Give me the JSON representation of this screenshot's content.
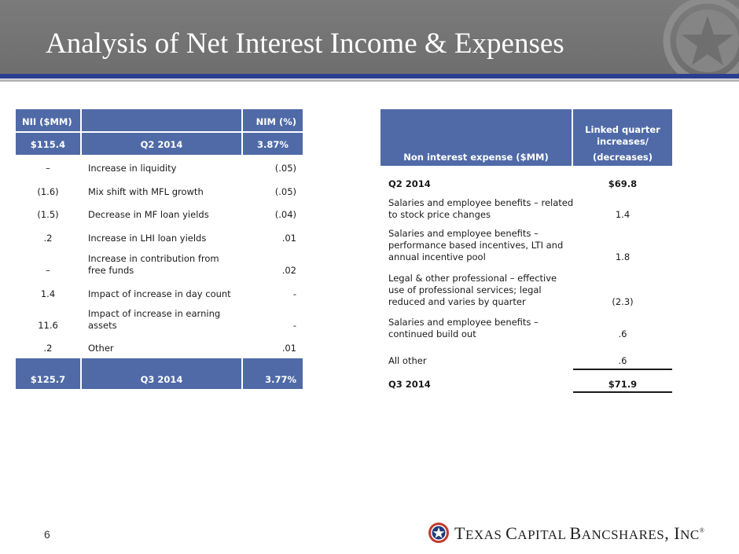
{
  "slide": {
    "title": "Analysis of Net Interest Income & Expenses",
    "page_number": "6"
  },
  "left_table": {
    "header_row1": [
      "NII ($MM)",
      "",
      "NIM (%)"
    ],
    "header_row2": [
      "$115.4",
      "Q2 2014",
      "3.87%"
    ],
    "rows": [
      {
        "nii": "–",
        "desc": [
          "Increase in liquidity"
        ],
        "nim": "(.05)"
      },
      {
        "nii": "(1.6)",
        "desc": [
          "Mix shift with MFL growth"
        ],
        "nim": "(.05)"
      },
      {
        "nii": "(1.5)",
        "desc": [
          "Decrease in MF loan yields"
        ],
        "nim": "(.04)"
      },
      {
        "nii": ".2",
        "desc": [
          "Increase in LHI loan yields"
        ],
        "nim": ".01"
      },
      {
        "nii": "–",
        "desc": [
          "Increase in contribution from",
          "free funds"
        ],
        "nim": ".02"
      },
      {
        "nii": "1.4",
        "desc": [
          "Impact of increase in day count"
        ],
        "nim": "-"
      },
      {
        "nii": "11.6",
        "desc": [
          "Impact of increase in earning",
          "assets"
        ],
        "nim": "-"
      },
      {
        "nii": ".2",
        "desc": [
          "Other"
        ],
        "nim": ".01"
      }
    ],
    "footer_row": [
      "$125.7",
      "Q3 2014",
      "3.77%"
    ]
  },
  "right_table": {
    "header_left": "Non interest expense ($MM)",
    "header_right": [
      "Linked quarter",
      "increases/",
      "(decreases)"
    ],
    "start_row": {
      "label": "Q2 2014",
      "value": "$69.8"
    },
    "rows": [
      {
        "desc": [
          "Salaries and employee benefits – related",
          "to stock price changes"
        ],
        "value": "1.4"
      },
      {
        "desc": [
          "Salaries and employee benefits –",
          "performance based incentives, LTI and",
          "annual incentive pool"
        ],
        "value": "1.8"
      },
      {
        "desc": [
          "Legal & other professional – effective",
          "use of professional services; legal",
          "reduced and varies by quarter"
        ],
        "value": "(2.3)"
      },
      {
        "desc": [
          "Salaries and employee benefits –",
          "continued build out"
        ],
        "value": ".6"
      },
      {
        "desc": [
          "All other"
        ],
        "value": ".6"
      }
    ],
    "end_row": {
      "label": "Q3 2014",
      "value": "$71.9"
    }
  },
  "logo": {
    "name_part1": "T",
    "name_part2": "EXAS ",
    "name_part3": "C",
    "name_part4": "APITAL ",
    "name_part5": "B",
    "name_part6": "ANCSHARES",
    "name_part7": ", I",
    "name_part8": "NC",
    "registered": "®"
  },
  "colors": {
    "header_gray": "#767676",
    "accent_blue": "#2a3f8f",
    "table_header_blue": "#4f6aa7",
    "logo_red": "#c0392b",
    "logo_navy": "#1f3b7a"
  }
}
